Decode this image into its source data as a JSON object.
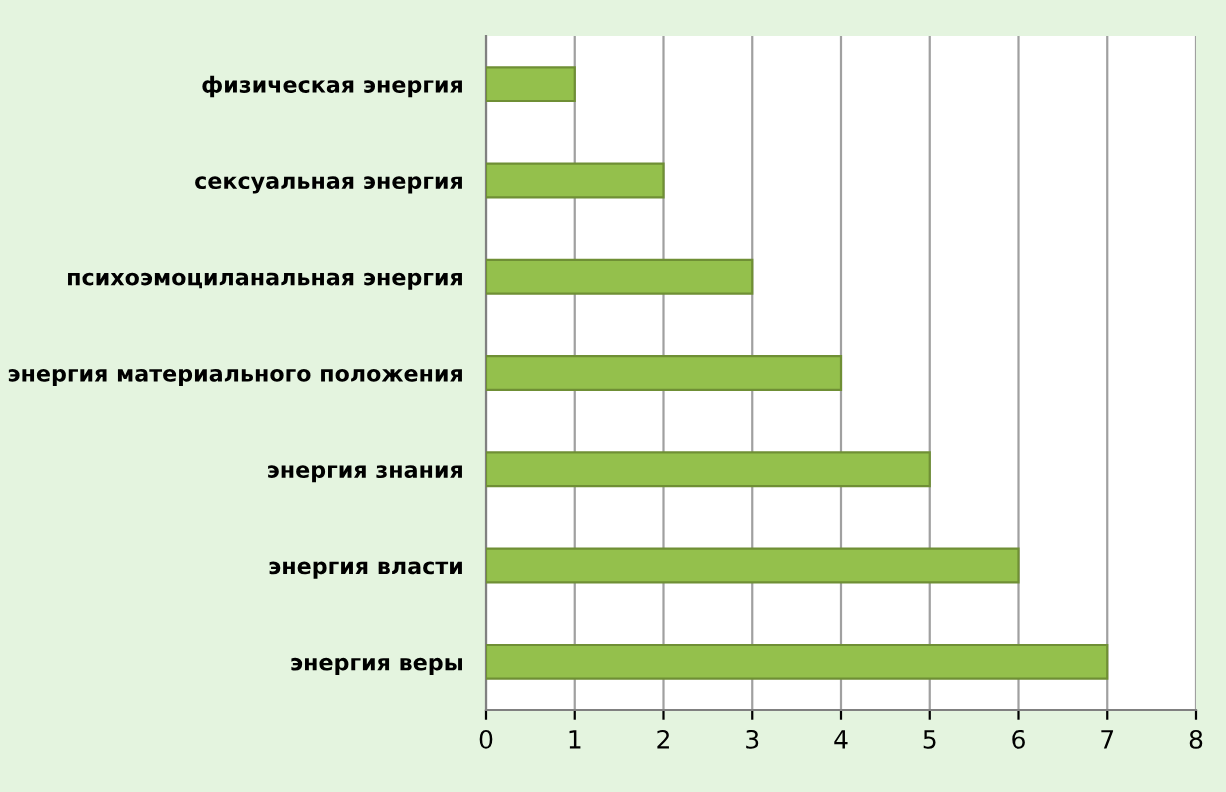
{
  "chart_data": {
    "type": "bar",
    "orientation": "horizontal",
    "categories": [
      "физическая энергия",
      "сексуальная энергия",
      "психоэмоциланальная энергия",
      "энергия материального положения",
      "энергия знания",
      "энергия власти",
      "энергия веры"
    ],
    "values": [
      1,
      2,
      3,
      4,
      5,
      6,
      7
    ],
    "color": "#94c04c",
    "xlim": [
      0,
      8
    ],
    "xticks": [
      0,
      1,
      2,
      3,
      4,
      5,
      6,
      7,
      8
    ],
    "grid": "x"
  }
}
